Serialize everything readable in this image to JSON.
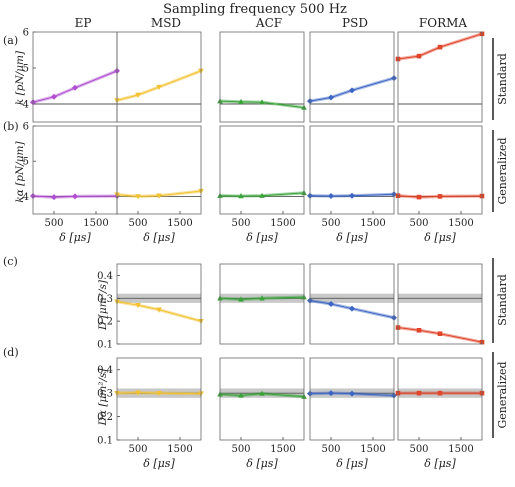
{
  "title": "Sampling frequency 500 Hz",
  "methods": [
    {
      "name": "EP",
      "color": "#b04fd0"
    },
    {
      "name": "MSD",
      "color": "#f2c230"
    },
    {
      "name": "ACF",
      "color": "#3aa33a"
    },
    {
      "name": "PSD",
      "color": "#3d66c4"
    },
    {
      "name": "FORMA",
      "color": "#e0452a"
    }
  ],
  "panel_labels": [
    "(a)",
    "(b)",
    "(c)",
    "(d)"
  ],
  "side_labels": [
    "Standard",
    "Generalized",
    "Standard",
    "Generalized"
  ],
  "y_labels": [
    "k [pN/μm]",
    "kα [pN/μm]",
    "D [μm²/s]",
    "Dα [μm²/s]"
  ],
  "x_label": "δ [μs]",
  "x_ticks": [
    "500",
    "1500"
  ],
  "y_ticks_k": [
    "4",
    "5",
    "6"
  ],
  "y_ticks_D": [
    "0.1",
    "0.2",
    "0.3",
    "0.4"
  ],
  "chart_data": {
    "type": "scatter",
    "title": "Sampling frequency 500 Hz",
    "x_range": [
      0,
      2000
    ],
    "rows": [
      {
        "label": "(a)",
        "quantity": "k [pN/μm]",
        "variant": "Standard",
        "ylim": [
          3.5,
          6
        ],
        "reference": 4,
        "series": [
          {
            "method": "EP",
            "x": [
              0,
              500,
              1000,
              2000
            ],
            "y": [
              4.05,
              4.2,
              4.45,
              4.92
            ]
          },
          {
            "method": "MSD",
            "x": [
              0,
              500,
              1000,
              2000
            ],
            "y": [
              4.1,
              4.25,
              4.47,
              4.92
            ]
          },
          {
            "method": "ACF",
            "x": [
              0,
              500,
              1000,
              2000
            ],
            "y": [
              4.08,
              4.06,
              4.05,
              3.9
            ]
          },
          {
            "method": "PSD",
            "x": [
              0,
              500,
              1000,
              2000
            ],
            "y": [
              4.08,
              4.18,
              4.38,
              4.72
            ]
          },
          {
            "method": "FORMA",
            "x": [
              0,
              500,
              1000,
              2000
            ],
            "y": [
              5.25,
              5.33,
              5.58,
              5.95
            ]
          }
        ]
      },
      {
        "label": "(b)",
        "quantity": "kα [pN/μm]",
        "variant": "Generalized",
        "ylim": [
          3.5,
          6
        ],
        "reference": 4,
        "series": [
          {
            "method": "EP",
            "x": [
              0,
              500,
              1000,
              2000
            ],
            "y": [
              4.01,
              3.98,
              4.0,
              4.01
            ]
          },
          {
            "method": "MSD",
            "x": [
              0,
              500,
              1000,
              2000
            ],
            "y": [
              4.05,
              4.0,
              4.02,
              4.15
            ]
          },
          {
            "method": "ACF",
            "x": [
              0,
              500,
              1000,
              2000
            ],
            "y": [
              4.02,
              4.01,
              4.02,
              4.1
            ]
          },
          {
            "method": "PSD",
            "x": [
              0,
              500,
              1000,
              2000
            ],
            "y": [
              4.02,
              4.01,
              4.02,
              4.06
            ]
          },
          {
            "method": "FORMA",
            "x": [
              0,
              500,
              1000,
              2000
            ],
            "y": [
              4.02,
              3.98,
              4.0,
              4.01
            ]
          }
        ]
      },
      {
        "label": "(c)",
        "quantity": "D [μm²/s]",
        "variant": "Standard",
        "ylim": [
          0.1,
          0.45
        ],
        "reference": 0.3,
        "band": [
          0.28,
          0.32
        ],
        "series": [
          {
            "method": "MSD",
            "x": [
              0,
              500,
              1000,
              2000
            ],
            "y": [
              0.285,
              0.27,
              0.25,
              0.2
            ]
          },
          {
            "method": "ACF",
            "x": [
              0,
              500,
              1000,
              2000
            ],
            "y": [
              0.3,
              0.295,
              0.3,
              0.305
            ]
          },
          {
            "method": "PSD",
            "x": [
              0,
              500,
              1000,
              2000
            ],
            "y": [
              0.29,
              0.275,
              0.255,
              0.215
            ]
          },
          {
            "method": "FORMA",
            "x": [
              0,
              500,
              1000,
              2000
            ],
            "y": [
              0.172,
              0.16,
              0.145,
              0.108
            ]
          }
        ]
      },
      {
        "label": "(d)",
        "quantity": "Dα [μm²/s]",
        "variant": "Generalized",
        "ylim": [
          0.1,
          0.45
        ],
        "reference": 0.3,
        "band": [
          0.28,
          0.32
        ],
        "series": [
          {
            "method": "MSD",
            "x": [
              0,
              500,
              1000,
              2000
            ],
            "y": [
              0.3,
              0.302,
              0.3,
              0.298
            ]
          },
          {
            "method": "ACF",
            "x": [
              0,
              500,
              1000,
              2000
            ],
            "y": [
              0.295,
              0.29,
              0.298,
              0.285
            ]
          },
          {
            "method": "PSD",
            "x": [
              0,
              500,
              1000,
              2000
            ],
            "y": [
              0.298,
              0.3,
              0.298,
              0.29
            ]
          },
          {
            "method": "FORMA",
            "x": [
              0,
              500,
              1000,
              2000
            ],
            "y": [
              0.3,
              0.3,
              0.3,
              0.3
            ]
          }
        ]
      }
    ]
  }
}
